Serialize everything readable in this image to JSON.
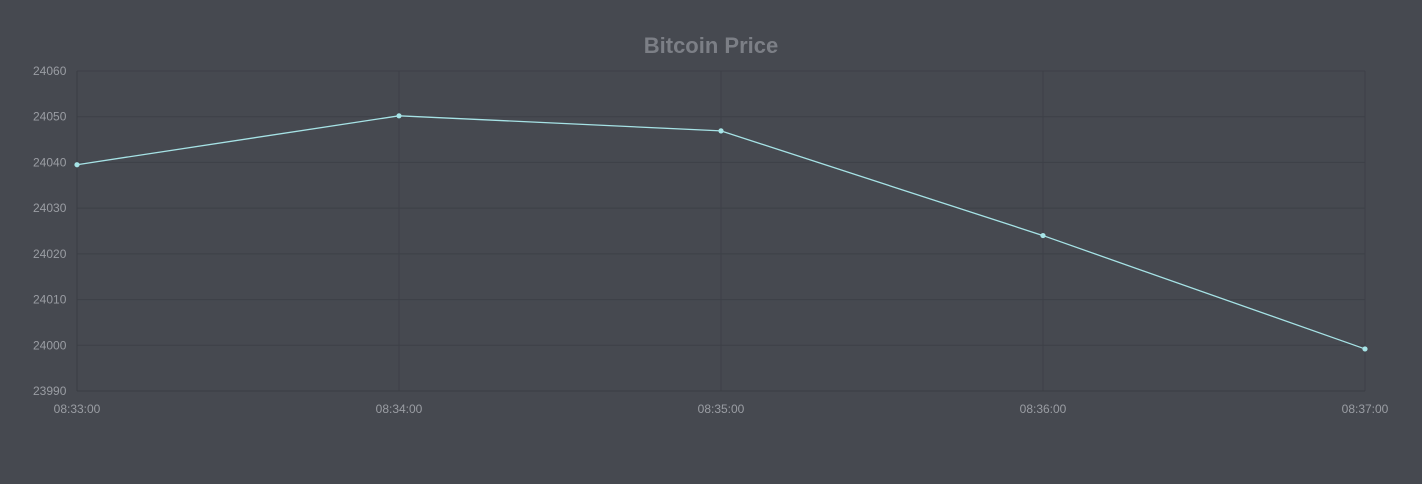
{
  "chart_data": {
    "type": "line",
    "title": "Bitcoin Price",
    "xlabel": "",
    "ylabel": "",
    "x": [
      "08:33:00",
      "08:34:00",
      "08:35:00",
      "08:36:00",
      "08:37:00"
    ],
    "series": [
      {
        "values": [
          24039.5,
          24050.2,
          24046.9,
          24024.0,
          23999.2
        ]
      }
    ],
    "ylim": [
      23990,
      24060
    ],
    "yticks": [
      24060,
      24050,
      24040,
      24030,
      24020,
      24010,
      24000,
      23990
    ],
    "grid": true,
    "legend": "none",
    "colors": {
      "background": "#464950",
      "line": "#a6e3e6",
      "grid": "#3d4047",
      "title": "#7c7f86",
      "tick_text": "#9a9da3"
    }
  }
}
